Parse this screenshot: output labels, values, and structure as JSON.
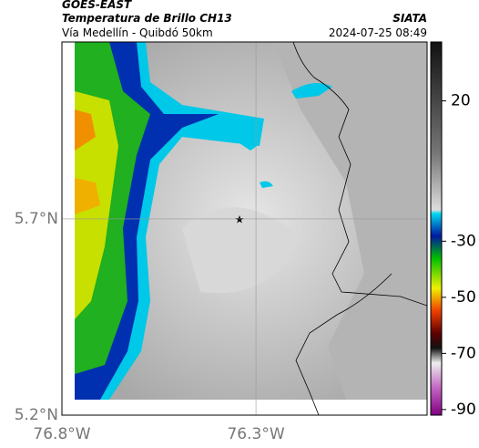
{
  "header": {
    "satellite": "GOES-EAST",
    "title": "Temperatura de Brillo CH13",
    "subtitle": "Vía Medellín - Quibdó 50km",
    "source": "SIATA",
    "datetime": "2024-07-25 08:49"
  },
  "map": {
    "xlim": [
      -76.8,
      -75.859
    ],
    "ylim": [
      5.2,
      6.151
    ],
    "xticks": [
      {
        "value": -76.8,
        "label": "76.8°W"
      },
      {
        "value": -76.3,
        "label": "76.3°W"
      }
    ],
    "yticks": [
      {
        "value": 5.7,
        "label": "5.7°N"
      },
      {
        "value": 5.2,
        "label": "5.2°N"
      }
    ]
  },
  "colorbar": {
    "lim": [
      -92,
      41
    ],
    "ticks": [
      20,
      -30,
      -50,
      -70,
      -90
    ]
  }
}
